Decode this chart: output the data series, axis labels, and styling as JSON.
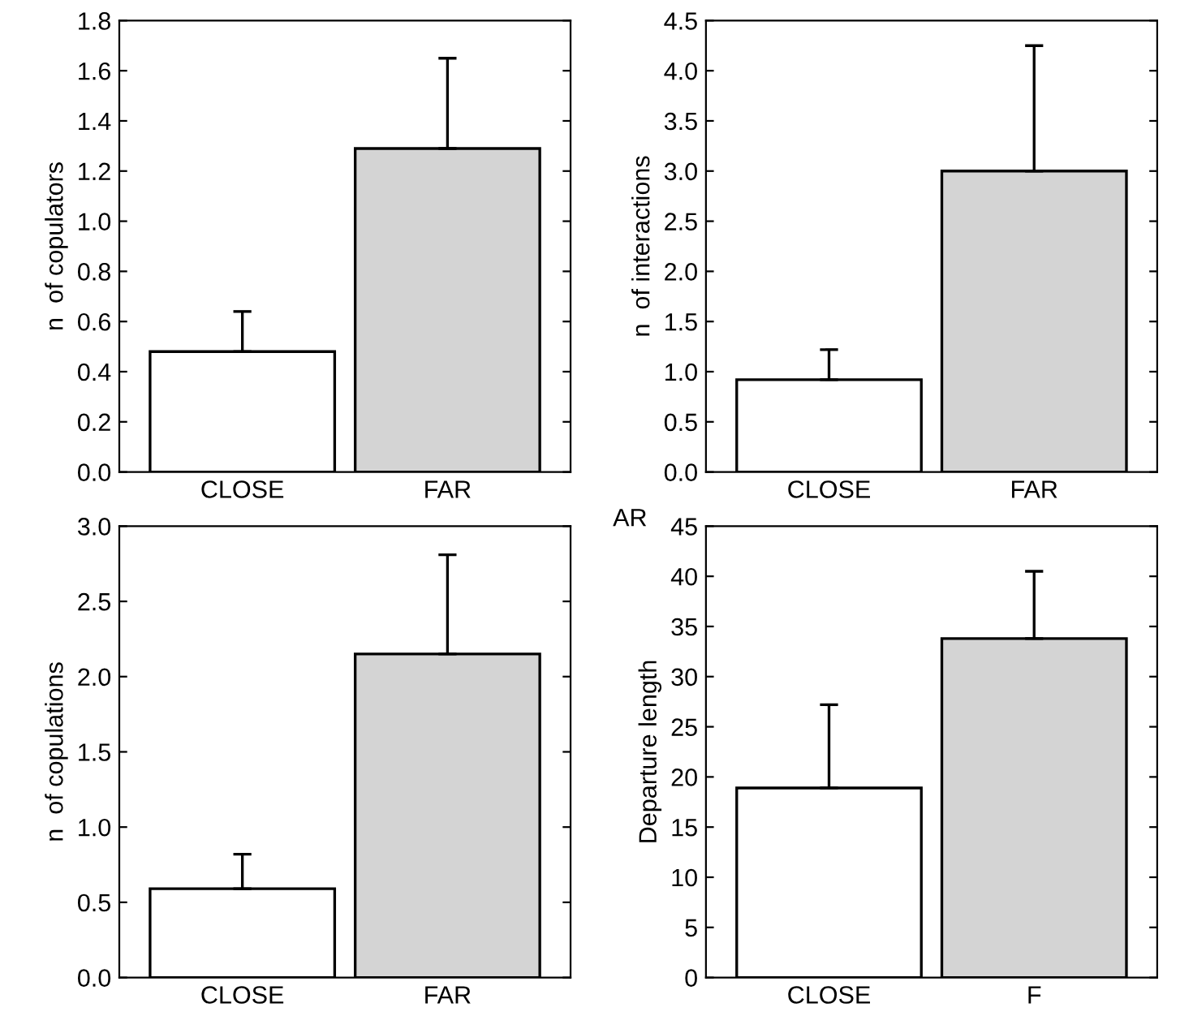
{
  "chart_data": [
    {
      "type": "bar",
      "ylabel": "n  of copulators",
      "categories": [
        "CLOSE",
        "FAR"
      ],
      "values": [
        0.48,
        1.29
      ],
      "errors": [
        [
          0.48,
          0.64
        ],
        [
          1.29,
          1.65
        ]
      ],
      "colors": [
        "#ffffff",
        "#d4d4d4"
      ],
      "ylim": [
        0,
        1.8
      ],
      "yticks": [
        {
          "value": 0,
          "label": "0.0"
        },
        0.2,
        0.4,
        0.6,
        0.8,
        {
          "value": 1,
          "label": "1.0"
        },
        1.2,
        1.4,
        1.6,
        1.8
      ],
      "grid": false
    },
    {
      "type": "bar",
      "ylabel": "n  of interactions",
      "categories": [
        "CLOSE",
        "FAR"
      ],
      "values": [
        0.92,
        3.0
      ],
      "errors": [
        [
          0.92,
          1.22
        ],
        [
          3.0,
          4.25
        ]
      ],
      "colors": [
        "#ffffff",
        "#d4d4d4"
      ],
      "ylim": [
        0,
        4.5
      ],
      "yticks": [
        {
          "value": 0,
          "label": "0.0"
        },
        0.5,
        {
          "value": 1,
          "label": "1.0"
        },
        1.5,
        {
          "value": 2,
          "label": "2.0"
        },
        2.5,
        {
          "value": 3,
          "label": "3.0"
        },
        3.5,
        {
          "value": 4,
          "label": "4.0"
        },
        4.5
      ],
      "grid": false,
      "annotations": [
        "AR"
      ]
    },
    {
      "type": "bar",
      "ylabel": "n  of copulations",
      "categories": [
        "CLOSE",
        "FAR"
      ],
      "values": [
        0.59,
        2.15
      ],
      "errors": [
        [
          0.59,
          0.82
        ],
        [
          2.15,
          2.81
        ]
      ],
      "colors": [
        "#ffffff",
        "#d4d4d4"
      ],
      "ylim": [
        0,
        3.0
      ],
      "yticks": [
        {
          "value": 0,
          "label": "0.0"
        },
        0.5,
        {
          "value": 1,
          "label": "1.0"
        },
        1.5,
        {
          "value": 2,
          "label": "2.0"
        },
        2.5,
        {
          "value": 3,
          "label": "3.0"
        }
      ],
      "grid": false
    },
    {
      "type": "bar",
      "ylabel": "Departure length",
      "categories": [
        "CLOSE",
        "F"
      ],
      "values": [
        18.9,
        33.8
      ],
      "errors": [
        [
          18.9,
          27.2
        ],
        [
          33.8,
          40.5
        ]
      ],
      "colors": [
        "#ffffff",
        "#d4d4d4"
      ],
      "ylim": [
        0,
        45
      ],
      "yticks": [
        0,
        5,
        10,
        15,
        20,
        25,
        30,
        35,
        40,
        45
      ],
      "grid": false
    }
  ]
}
